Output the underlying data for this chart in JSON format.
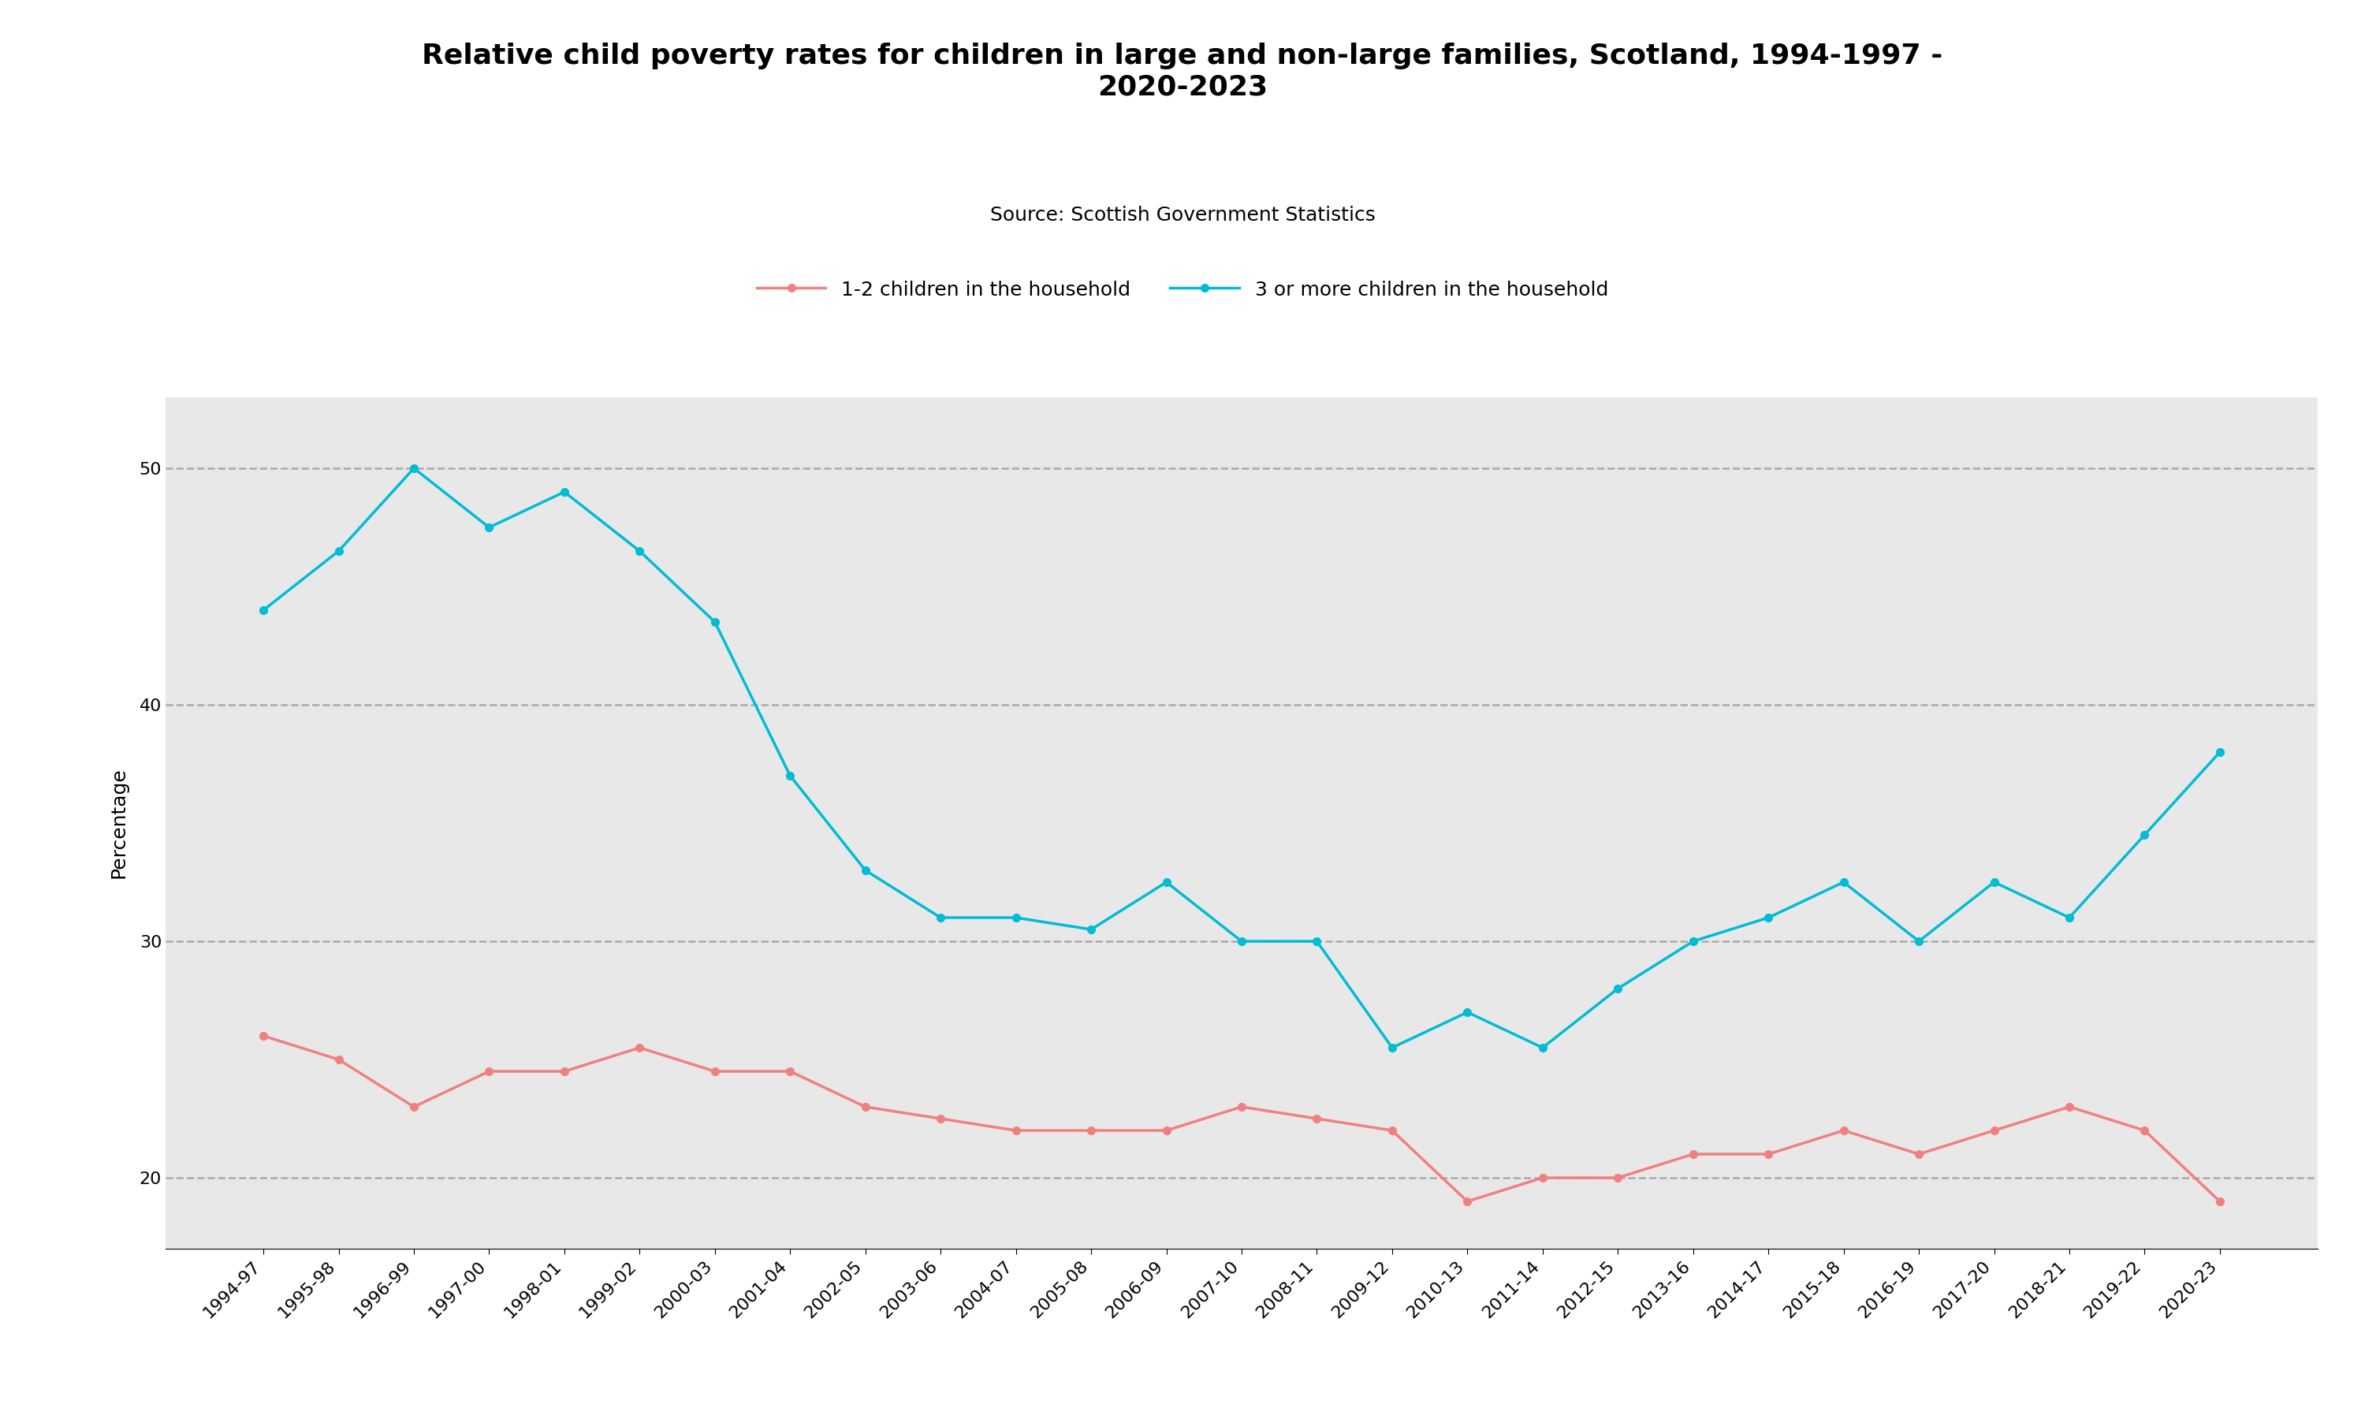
{
  "title": "Relative child poverty rates for children in large and non-large families, Scotland, 1994-1997 -\n2020-2023",
  "source": "Source: Scottish Government Statistics",
  "xlabel": "",
  "ylabel": "Percentage",
  "x_labels": [
    "1994-97",
    "1995-98",
    "1996-99",
    "1997-00",
    "1998-01",
    "1999-02",
    "2000-03",
    "2001-04",
    "2002-05",
    "2003-06",
    "2004-07",
    "2005-08",
    "2006-09",
    "2007-10",
    "2008-11",
    "2009-12",
    "2010-13",
    "2011-14",
    "2012-15",
    "2013-16",
    "2014-17",
    "2015-18",
    "2016-19",
    "2017-20",
    "2018-21",
    "2019-22",
    "2020-23"
  ],
  "series_1_label": "1-2 children in the household",
  "series_1_color": "#F08080",
  "series_1_values": [
    26,
    25,
    23,
    24.5,
    24.5,
    25.5,
    24.5,
    24.5,
    23,
    22.5,
    22,
    22,
    22,
    23,
    22.5,
    22,
    19,
    20,
    20,
    21,
    21,
    22,
    21,
    22,
    23,
    22,
    19
  ],
  "series_2_label": "3 or more children in the household",
  "series_2_color": "#00BCD4",
  "series_2_values": [
    44,
    46.5,
    50,
    47.5,
    49,
    46.5,
    43.5,
    37,
    33,
    31,
    31,
    30.5,
    32.5,
    30,
    30,
    25.5,
    27,
    25.5,
    28,
    30,
    31,
    32.5,
    30,
    32.5,
    31,
    34.5,
    38
  ],
  "ylim": [
    17,
    53
  ],
  "yticks": [
    20,
    30,
    40,
    50
  ],
  "background_color": "#E8E8E8",
  "outer_background": "#FFFFFF",
  "grid_color": "#AAAAAA",
  "title_fontsize": 26,
  "source_fontsize": 18,
  "legend_fontsize": 18,
  "axis_label_fontsize": 18,
  "tick_fontsize": 16,
  "line_width": 2.5,
  "marker": "o",
  "marker_size": 7
}
